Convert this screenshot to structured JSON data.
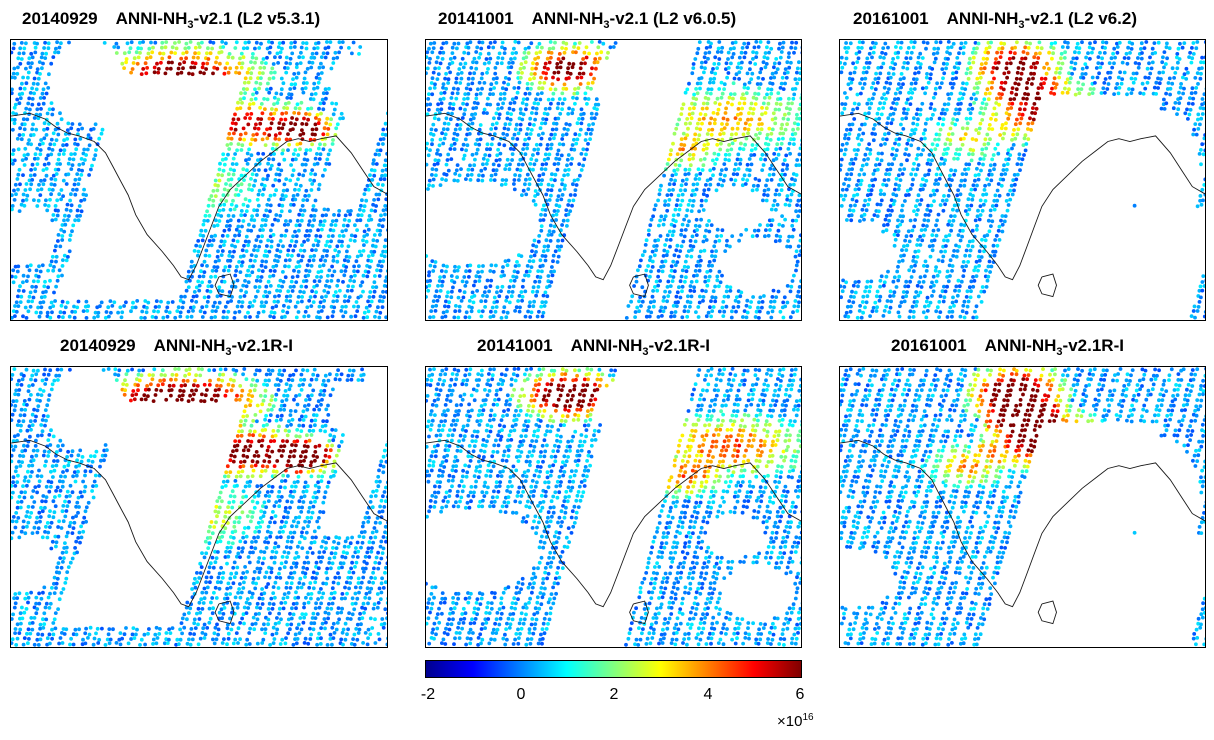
{
  "panels": [
    {
      "date": "20140929",
      "product": "ANNI-NH",
      "subscript": "3",
      "version": "-v2.1 (L2 v5.3.1)",
      "scene": "a",
      "reprocessed": false
    },
    {
      "date": "20141001",
      "product": "ANNI-NH",
      "subscript": "3",
      "version": "-v2.1 (L2 v6.0.5)",
      "scene": "b",
      "reprocessed": false
    },
    {
      "date": "20161001",
      "product": "ANNI-NH",
      "subscript": "3",
      "version": "-v2.1 (L2 v6.2)",
      "scene": "c",
      "reprocessed": false
    },
    {
      "date": "20140929",
      "product": "ANNI-NH",
      "subscript": "3",
      "version": "-v2.1R-I",
      "scene": "a",
      "reprocessed": true
    },
    {
      "date": "20141001",
      "product": "ANNI-NH",
      "subscript": "3",
      "version": "-v2.1R-I",
      "scene": "b",
      "reprocessed": true
    },
    {
      "date": "20161001",
      "product": "ANNI-NH",
      "subscript": "3",
      "version": "-v2.1R-I",
      "scene": "c",
      "reprocessed": true
    }
  ],
  "colorbar": {
    "colormap": "jet",
    "min": -2,
    "max": 6,
    "ticks": [
      "-2",
      "0",
      "2",
      "4",
      "6"
    ],
    "multiplier_base": "10",
    "multiplier_exponent": "16",
    "multiplier_sign": "×"
  },
  "colors": {
    "coastline": "#1a1a1a",
    "frame": "#000000",
    "background": "#ffffff"
  }
}
